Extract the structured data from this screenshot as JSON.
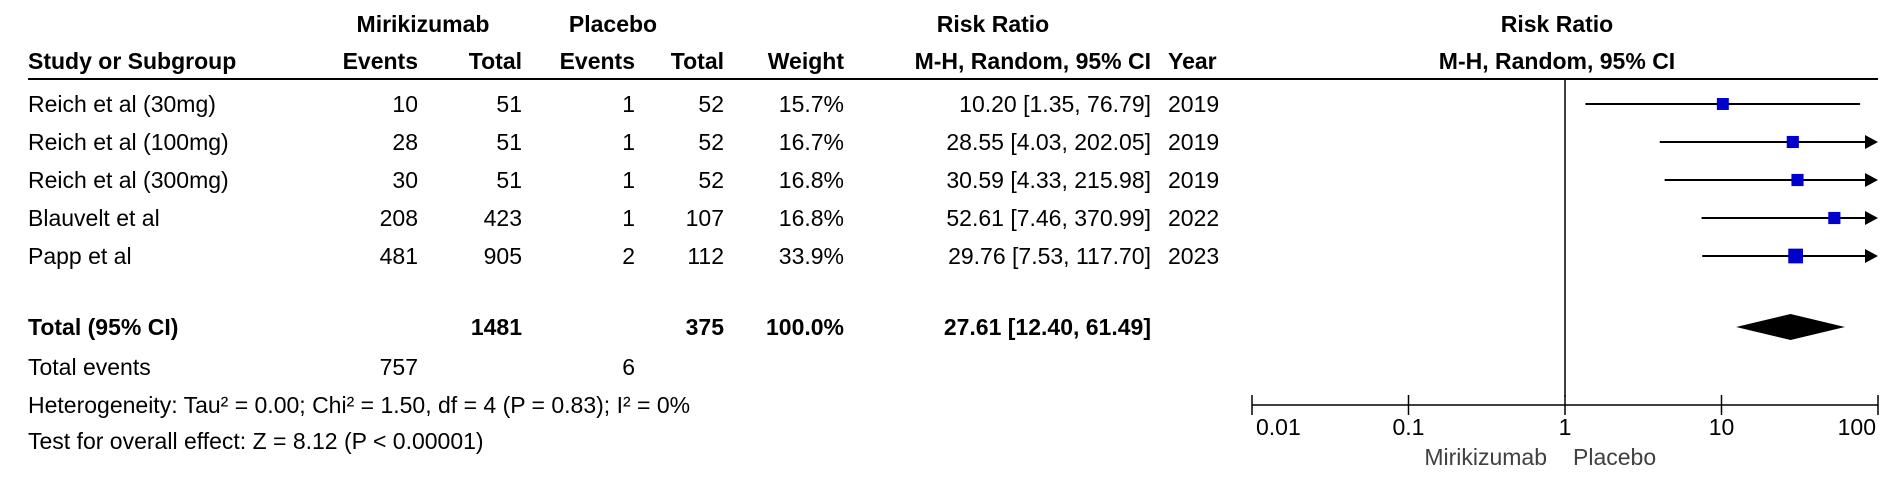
{
  "chart_data": {
    "type": "forest",
    "header": {
      "group_experimental": "Mirikizumab",
      "group_control": "Placebo",
      "effect_heading": "Risk Ratio",
      "col_study": "Study or Subgroup",
      "col_events": "Events",
      "col_total": "Total",
      "col_weight": "Weight",
      "col_ci": "M-H, Random, 95% CI",
      "col_year": "Year",
      "plot_heading": "Risk Ratio",
      "plot_subheading": "M-H, Random, 95% CI"
    },
    "studies": [
      {
        "study": "Reich et al (30mg)",
        "exp_events": "10",
        "exp_total": "51",
        "ctrl_events": "1",
        "ctrl_total": "52",
        "weight": "15.7%",
        "ci_text": "10.20 [1.35, 76.79]",
        "year": "2019",
        "rr": 10.2,
        "lo": 1.35,
        "hi": 76.79,
        "weight_pct": 15.7
      },
      {
        "study": "Reich et al (100mg)",
        "exp_events": "28",
        "exp_total": "51",
        "ctrl_events": "1",
        "ctrl_total": "52",
        "weight": "16.7%",
        "ci_text": "28.55 [4.03, 202.05]",
        "year": "2019",
        "rr": 28.55,
        "lo": 4.03,
        "hi": 202.05,
        "weight_pct": 16.7
      },
      {
        "study": "Reich et al (300mg)",
        "exp_events": "30",
        "exp_total": "51",
        "ctrl_events": "1",
        "ctrl_total": "52",
        "weight": "16.8%",
        "ci_text": "30.59 [4.33, 215.98]",
        "year": "2019",
        "rr": 30.59,
        "lo": 4.33,
        "hi": 215.98,
        "weight_pct": 16.8
      },
      {
        "study": "Blauvelt et al",
        "exp_events": "208",
        "exp_total": "423",
        "ctrl_events": "1",
        "ctrl_total": "107",
        "weight": "16.8%",
        "ci_text": "52.61 [7.46, 370.99]",
        "year": "2022",
        "rr": 52.61,
        "lo": 7.46,
        "hi": 370.99,
        "weight_pct": 16.8
      },
      {
        "study": "Papp et al",
        "exp_events": "481",
        "exp_total": "905",
        "ctrl_events": "2",
        "ctrl_total": "112",
        "weight": "33.9%",
        "ci_text": "29.76 [7.53, 117.70]",
        "year": "2023",
        "rr": 29.76,
        "lo": 7.53,
        "hi": 117.7,
        "weight_pct": 33.9
      }
    ],
    "total": {
      "label": "Total (95% CI)",
      "exp_total": "1481",
      "ctrl_total": "375",
      "weight": "100.0%",
      "ci_text": "27.61 [12.40, 61.49]",
      "rr": 27.61,
      "lo": 12.4,
      "hi": 61.49
    },
    "total_events": {
      "label": "Total events",
      "exp": "757",
      "ctrl": "6"
    },
    "heterogeneity": "Heterogeneity: Tau² = 0.00; Chi² = 1.50, df = 4 (P = 0.83); I² = 0%",
    "overall_effect": "Test for overall effect: Z = 8.12 (P < 0.00001)",
    "axis": {
      "scale": "log",
      "range": [
        0.01,
        100
      ],
      "ticks": [
        0.01,
        0.1,
        1,
        10,
        100
      ],
      "tick_labels": [
        "0.01",
        "0.1",
        "1",
        "10",
        "100"
      ],
      "favours_left": "Mirikizumab",
      "favours_right": "Placebo"
    },
    "colors": {
      "marker": "#0000cc",
      "line": "#000000",
      "diamond": "#000000"
    }
  }
}
